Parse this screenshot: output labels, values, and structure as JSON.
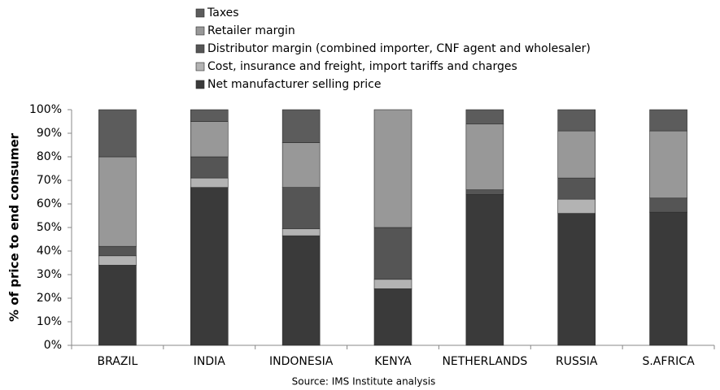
{
  "chart_data": {
    "type": "stacked_bar",
    "y_label": "% of price to end consumer",
    "source": "Source: IMS Institute analysis",
    "categories": [
      "BRAZIL",
      "INDIA",
      "INDONESIA",
      "KENYA",
      "NETHERLANDS",
      "RUSSIA",
      "S.AFRICA"
    ],
    "series": [
      {
        "name": "Net manufacturer selling price",
        "color": "#3a3a3a",
        "values": [
          34,
          67,
          46.5,
          24,
          64,
          56,
          56.5
        ]
      },
      {
        "name": "Cost, insurance and freight, import tariffs and charges",
        "color": "#b3b3b3",
        "values": [
          4,
          4,
          3,
          4,
          0,
          6,
          0
        ]
      },
      {
        "name": "Distributor margin (combined importer, CNF agent and wholesaler)",
        "color": "#555555",
        "values": [
          4,
          9,
          17.5,
          22,
          2,
          9,
          6
        ]
      },
      {
        "name": "Retailer margin",
        "color": "#989898",
        "values": [
          38,
          15,
          19,
          50,
          28,
          20,
          28.5
        ]
      },
      {
        "name": "Taxes",
        "color": "#5c5c5c",
        "values": [
          20,
          5,
          14,
          0,
          6,
          9,
          9
        ]
      }
    ],
    "ylim": [
      0,
      100
    ],
    "yticks": [
      {
        "value": 0,
        "label": "0%"
      },
      {
        "value": 10,
        "label": "10%"
      },
      {
        "value": 20,
        "label": "20%"
      },
      {
        "value": 30,
        "label": "30%"
      },
      {
        "value": 40,
        "label": "40%"
      },
      {
        "value": 50,
        "label": "50%"
      },
      {
        "value": 60,
        "label": "60%"
      },
      {
        "value": 70,
        "label": "70%"
      },
      {
        "value": 80,
        "label": "80%"
      },
      {
        "value": 90,
        "label": "90%"
      },
      {
        "value": 100,
        "label": "100%"
      }
    ]
  }
}
